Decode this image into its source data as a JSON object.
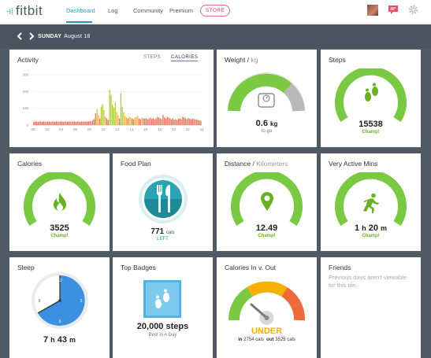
{
  "nav": {
    "logo": "fitbit",
    "dashboard": "Dashboard",
    "log": "Log",
    "community": "Community",
    "premium": "Premium",
    "store": "STORE"
  },
  "date": {
    "day": "SUNDAY",
    "date": "August 18"
  },
  "activity": {
    "title": "Activity",
    "tabs": {
      "steps": "STEPS",
      "calories": "CALORIES"
    },
    "y_ticks": [
      "300",
      "200",
      "100",
      "0"
    ],
    "x_ticks": [
      "00",
      "02",
      "04",
      "06",
      "08",
      "10",
      "12",
      "14",
      "16",
      "18",
      "20",
      "22",
      "24"
    ]
  },
  "weight": {
    "title": "Weight",
    "unit": "kg",
    "value": "0.6",
    "value_unit": "kg",
    "sub": "to go"
  },
  "steps": {
    "title": "Steps",
    "value": "15538",
    "sub": "Champ!"
  },
  "calories": {
    "title": "Calories",
    "value": "3525",
    "sub": "Champ!"
  },
  "food_plan": {
    "title": "Food Plan",
    "value": "771",
    "unit": "cals",
    "sub": "LEFT"
  },
  "distance": {
    "title": "Distance",
    "unit": "Kilometers",
    "value": "12.49",
    "sub": "Champ!"
  },
  "active_mins": {
    "title": "Very Active Mins",
    "h": "1",
    "h_unit": "h",
    "m": "20",
    "m_unit": "m",
    "sub": "Champ!"
  },
  "sleep": {
    "title": "Sleep",
    "h": "7",
    "h_unit": "h",
    "m": "43",
    "m_unit": "m",
    "clock": [
      "12",
      "3",
      "6",
      "9"
    ]
  },
  "top_badges": {
    "title": "Top Badges",
    "badge": "20,000 steps",
    "sub": "Best in A Day"
  },
  "calories_io": {
    "title": "Calories In v. Out",
    "status": "UNDER",
    "in_label": "in",
    "in_value": "2754",
    "in_unit": "cals",
    "out_label": "out",
    "out_value": "3525",
    "out_unit": "cals"
  },
  "friends": {
    "title": "Friends",
    "message": "Previous days aren't viewable for this tile."
  },
  "colors": {
    "green": "#6ab023",
    "teal": "#2d9bb5",
    "pink": "#d44b70",
    "board": "#505a65",
    "blue": "#3d8fe0"
  },
  "chart_data": {
    "type": "bar",
    "title": "Activity",
    "xlabel": "",
    "ylabel": "",
    "x_ticks": [
      "00",
      "02",
      "04",
      "06",
      "08",
      "10",
      "12",
      "14",
      "16",
      "18",
      "20",
      "22",
      "24"
    ],
    "ylim": [
      0,
      300
    ],
    "grid": true,
    "series": [
      {
        "name": "CALORIES",
        "values": [
          20,
          22,
          21,
          20,
          22,
          21,
          20,
          22,
          21,
          20,
          22,
          21,
          20,
          22,
          21,
          20,
          22,
          21,
          20,
          22,
          21,
          20,
          22,
          21,
          20,
          22,
          21,
          20,
          22,
          21,
          20,
          22,
          21,
          20,
          22,
          21,
          20,
          22,
          21,
          22,
          24,
          22,
          30,
          35,
          70,
          95,
          60,
          40,
          110,
          125,
          90,
          50,
          40,
          30,
          210,
          180,
          120,
          105,
          135,
          80,
          60,
          40,
          190,
          110,
          75,
          55,
          45,
          40,
          50,
          45,
          40,
          35,
          45,
          50,
          55,
          40,
          35,
          45,
          40,
          38,
          42,
          35,
          40,
          45,
          38,
          42,
          35,
          40,
          50,
          45,
          40,
          35,
          60,
          45,
          40,
          50,
          45,
          40,
          35,
          40,
          32,
          35,
          30,
          38,
          40,
          35,
          50,
          45,
          40,
          36,
          42,
          38,
          35,
          40,
          38,
          32,
          35,
          30,
          28,
          25
        ]
      }
    ]
  }
}
